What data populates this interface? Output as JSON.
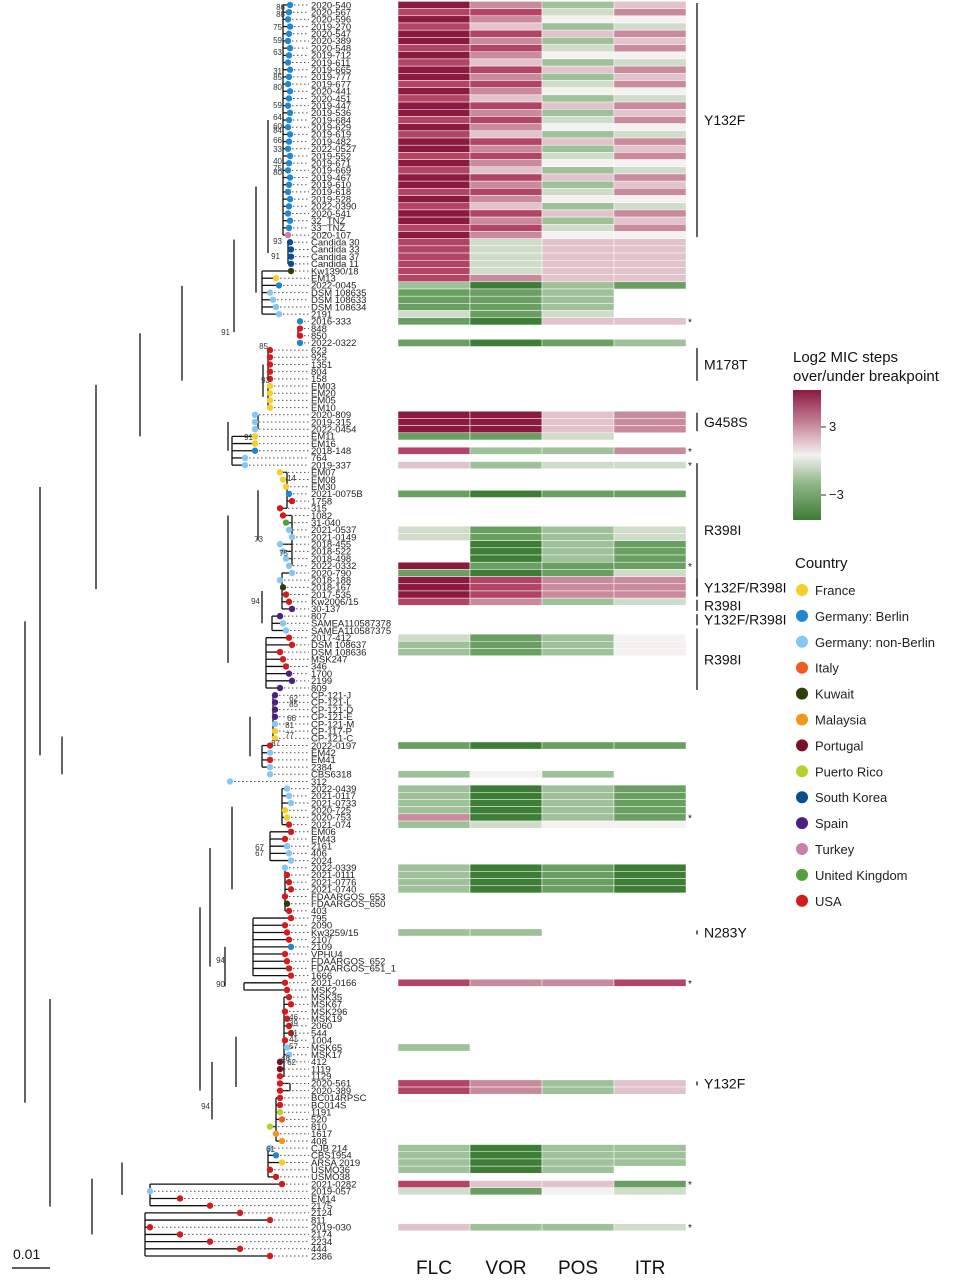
{
  "tip_labels": [
    "2020-540",
    "2020-567",
    "2020-596",
    "2019-270",
    "2020-547",
    "2020-389",
    "2020-548",
    "2019-712",
    "2019-611",
    "2019-665",
    "2019-777",
    "2019-677",
    "2020-441",
    "2020-451",
    "2019-447",
    "2019-536",
    "2019-684",
    "2019-629",
    "2019-619",
    "2019-482",
    "2022-0527",
    "2019-552",
    "2019-671",
    "2019-669",
    "2019-467",
    "2019-610",
    "2019-618",
    "2019-528",
    "2022-0390",
    "2020-541",
    "32_TNZ",
    "33_TNZ",
    "2020-107",
    "Candida 30",
    "Candida 33",
    "Candida 37",
    "Candida 11",
    "Kw1390/18",
    "EM13",
    "2022-0045",
    "DSM 108635",
    "DSM 108633",
    "DSM 108634",
    "2191",
    "2016-333",
    "848",
    "850",
    "2022-0322",
    "623",
    "925",
    "1351",
    "804",
    "158",
    "EM03",
    "EM20",
    "EM05",
    "EM10",
    "2020-809",
    "2019-315",
    "2022-0454",
    "EM11",
    "EM16",
    "2018-148",
    "764",
    "2019-337",
    "EM07",
    "EM08",
    "EM30",
    "2021-0075B",
    "1758",
    "315",
    "1082",
    "31-040",
    "2021-0537",
    "2021-0149",
    "2018-455",
    "2018-522",
    "2018-498",
    "2022-0332",
    "2020-790",
    "2018-188",
    "2018-167",
    "2017-535",
    "Kw2006/15",
    "30-137",
    "807",
    "SAMEA110587378",
    "SAMEA110587375",
    "2017-412",
    "DSM 108637",
    "DSM 108636",
    "MSK247",
    "346",
    "1700",
    "2199",
    "809",
    "CP-121-J",
    "CP-121-L",
    "CP-121-D",
    "CP-121-E",
    "CP-121-M",
    "CP-117-P",
    "CP-121-C",
    "2022-0197",
    "EM42",
    "EM41",
    "2384",
    "CBS6318",
    "312",
    "2022-0439",
    "2021-0117",
    "2021-0733",
    "2020-725",
    "2020-753",
    "2021-074",
    "EM06",
    "EM43",
    "2161",
    "406",
    "2024",
    "2022-0339",
    "2021-0111",
    "2021-0776",
    "2021-0740",
    "FDAARGOS_653",
    "FDAARGOS_650",
    "403",
    "795",
    "2090",
    "Kw3259/15",
    "2107",
    "2109",
    "VPHU4",
    "FDAARGOS_652",
    "FDAARGOS_651_1",
    "1666",
    "2021-0166",
    "MSK2",
    "MSK35",
    "MSK67",
    "MSK296",
    "MSK19",
    "2060",
    "544",
    "1004",
    "MSK65",
    "MSK17",
    "412",
    "1119",
    "1129",
    "2020-561",
    "2020-389",
    "BC014RPSC",
    "BC014S",
    "1191",
    "520",
    "810",
    "1617",
    "408",
    "CJB 214",
    "CBS1954",
    "ARSA 2019",
    "USMO36",
    "USMO38",
    "2021-0282",
    "2019-057",
    "EM14",
    "2175",
    "2124",
    "811",
    "2019-030",
    "2174",
    "2234",
    "444",
    "2386"
  ],
  "bootstrap_values": [
    "86",
    "88",
    "75",
    "59",
    "63",
    "31",
    "85",
    "80",
    "59",
    "64",
    "60",
    "84",
    "66",
    "33",
    "40",
    "75",
    "80",
    "93",
    "91",
    "91",
    "85",
    "93",
    "91",
    "14",
    "73",
    "75",
    "94",
    "62",
    "85",
    "66",
    "81",
    "77",
    "87",
    "67",
    "67",
    "94",
    "90",
    "46",
    "39",
    "51",
    "41",
    "57",
    "48",
    "62",
    "94",
    "61"
  ],
  "scale_bar": "0.01",
  "drugs": [
    "FLC",
    "VOR",
    "POS",
    "ITR"
  ],
  "mutation_labels": [
    "Y132F",
    "M178T",
    "G458S",
    "R398I",
    "Y132F/R398I",
    "R398I",
    "Y132F/R398I",
    "R398I",
    "N283Y",
    "Y132F"
  ],
  "asterisk": "*",
  "legend": {
    "heatmap_title_1": "Log2 MIC steps",
    "heatmap_title_2": "over/under breakpoint",
    "tick_high": "3",
    "tick_low": "−3",
    "gradient_colors": [
      "#8b1a41",
      "#c98a9c",
      "#f4f1f1",
      "#8cb484",
      "#3d7d35"
    ],
    "country_title": "Country",
    "countries": [
      {
        "name": "France",
        "color": "#f5ce2b"
      },
      {
        "name": "Germany: Berlin",
        "color": "#1f86d2"
      },
      {
        "name": "Germany: non-Berlin",
        "color": "#86c6f2"
      },
      {
        "name": "Italy",
        "color": "#f15a22"
      },
      {
        "name": "Kuwait",
        "color": "#2f3d0c"
      },
      {
        "name": "Malaysia",
        "color": "#f4961e"
      },
      {
        "name": "Portugal",
        "color": "#7a1025"
      },
      {
        "name": "Puerto Rico",
        "color": "#b7d12a"
      },
      {
        "name": "South Korea",
        "color": "#0b4f8f"
      },
      {
        "name": "Spain",
        "color": "#4a2082"
      },
      {
        "name": "Turkey",
        "color": "#cc7fac"
      },
      {
        "name": "United Kingdom",
        "color": "#56a03c"
      },
      {
        "name": "USA",
        "color": "#d01c1f"
      }
    ]
  },
  "heatmap_colors": {
    "dark_red": "#8b1a41",
    "red": "#b24566",
    "rose": "#c98a9c",
    "pale_rose": "#e2c2cb",
    "white": "#f4f1f1",
    "pale_green": "#cfdcc9",
    "light_green": "#9fc199",
    "green": "#6a9f62",
    "dark_green": "#3d7d35"
  }
}
